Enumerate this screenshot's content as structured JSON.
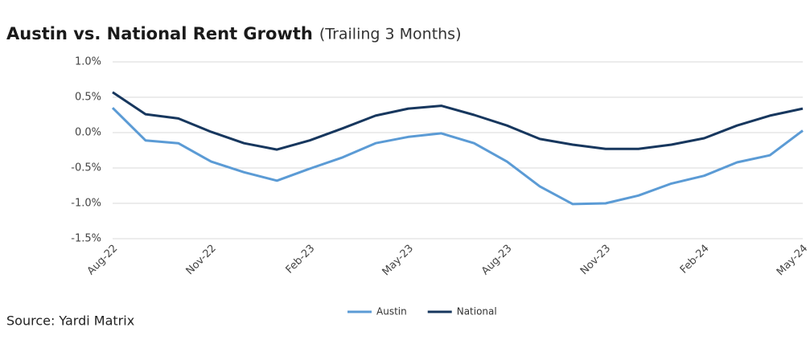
{
  "chart_data": {
    "type": "line",
    "title": "Austin vs. National Rent Growth",
    "subtitle": "(Trailing 3 Months)",
    "source": "Source: Yardi Matrix",
    "categories": [
      "Aug-22",
      null,
      null,
      "Nov-22",
      null,
      null,
      "Feb-23",
      null,
      null,
      "May-23",
      null,
      null,
      "Aug-23",
      null,
      null,
      "Nov-23",
      null,
      null,
      "Feb-24",
      null,
      null,
      "May-24"
    ],
    "series": [
      {
        "name": "Austin",
        "color": "#5b9bd5",
        "values": [
          0.35,
          -0.11,
          -0.15,
          -0.41,
          -0.56,
          -0.68,
          -0.51,
          -0.35,
          -0.15,
          -0.06,
          -0.01,
          -0.15,
          -0.41,
          -0.76,
          -1.01,
          -1.0,
          -0.89,
          -0.72,
          -0.61,
          -0.42,
          -0.32,
          0.03
        ]
      },
      {
        "name": "National",
        "color": "#17375e",
        "values": [
          0.57,
          0.26,
          0.2,
          0.01,
          -0.15,
          -0.24,
          -0.11,
          0.06,
          0.24,
          0.34,
          0.38,
          0.25,
          0.1,
          -0.09,
          -0.17,
          -0.23,
          -0.23,
          -0.17,
          -0.08,
          0.1,
          0.24,
          0.34
        ]
      }
    ],
    "ylim": [
      -1.5,
      1.0
    ],
    "yticks": [
      {
        "value": -1.5,
        "label": "-1.5%"
      },
      {
        "value": -1.0,
        "label": "-1.0%"
      },
      {
        "value": -0.5,
        "label": "-0.5%"
      },
      {
        "value": 0,
        "label": "0.0%"
      },
      {
        "value": 0.5,
        "label": "0.5%"
      },
      {
        "value": 1.0,
        "label": "1.0%"
      }
    ],
    "grid": true,
    "legend": "bottom"
  }
}
